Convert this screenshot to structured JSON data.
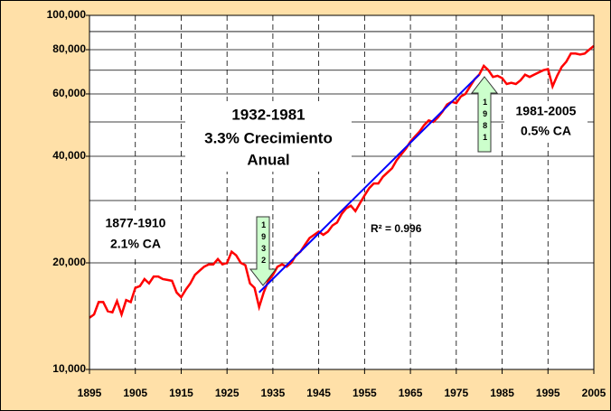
{
  "chart_data": {
    "type": "line",
    "log_y": true,
    "grid": true,
    "background": "#ffe0a8",
    "x": [
      1895,
      1896,
      1897,
      1898,
      1899,
      1900,
      1901,
      1902,
      1903,
      1904,
      1905,
      1906,
      1907,
      1908,
      1909,
      1910,
      1911,
      1912,
      1913,
      1914,
      1915,
      1916,
      1917,
      1918,
      1919,
      1920,
      1921,
      1922,
      1923,
      1924,
      1925,
      1926,
      1927,
      1928,
      1929,
      1930,
      1931,
      1932,
      1933,
      1934,
      1935,
      1936,
      1937,
      1938,
      1939,
      1940,
      1941,
      1942,
      1943,
      1944,
      1945,
      1946,
      1947,
      1948,
      1949,
      1950,
      1951,
      1952,
      1953,
      1954,
      1955,
      1956,
      1957,
      1958,
      1959,
      1960,
      1961,
      1962,
      1963,
      1964,
      1965,
      1966,
      1967,
      1968,
      1969,
      1970,
      1971,
      1972,
      1973,
      1974,
      1975,
      1976,
      1977,
      1978,
      1979,
      1980,
      1981,
      1982,
      1983,
      1984,
      1985,
      1986,
      1987,
      1988,
      1989,
      1990,
      1991,
      1992,
      1993,
      1994,
      1995,
      1996,
      1997,
      1998,
      1999,
      2000,
      2001,
      2002,
      2003,
      2004,
      2005
    ],
    "series": [
      {
        "color": "#ff0000",
        "values": [
          14000,
          14300,
          15500,
          15500,
          14600,
          14500,
          15600,
          14300,
          15700,
          15500,
          17000,
          17200,
          18000,
          17500,
          18300,
          18300,
          18000,
          17900,
          17800,
          16500,
          16000,
          16800,
          17500,
          18500,
          19000,
          19500,
          19800,
          19800,
          20500,
          19800,
          20000,
          21500,
          21000,
          20000,
          19700,
          17500,
          17000,
          15000,
          16500,
          17800,
          18500,
          19500,
          19800,
          19500,
          20000,
          21000,
          21500,
          22500,
          23500,
          24000,
          24500,
          24000,
          24500,
          25500,
          26000,
          27500,
          28500,
          29000,
          28000,
          29500,
          31000,
          32500,
          33500,
          33500,
          35000,
          36000,
          37000,
          39000,
          40500,
          42000,
          44000,
          45500,
          47000,
          49000,
          50500,
          50000,
          51500,
          53500,
          56000,
          57000,
          56500,
          59000,
          60000,
          63000,
          66000,
          68000,
          72000,
          70000,
          67000,
          67500,
          66500,
          64000,
          64500,
          64000,
          65500,
          68000,
          67000,
          68000,
          69000,
          70000,
          70500,
          63000,
          67500,
          71500,
          74000,
          78000,
          78000,
          77500,
          78000,
          80000,
          82000
        ]
      },
      {
        "color": "#0000ff",
        "x": [
          1932,
          1980
        ],
        "values": [
          16500,
          68000
        ]
      }
    ],
    "xlim": [
      1895,
      2005
    ],
    "xticks": [
      1895,
      1905,
      1915,
      1925,
      1935,
      1945,
      1955,
      1965,
      1975,
      1985,
      1995,
      2005
    ],
    "ylim": [
      10000,
      100000
    ],
    "yticks": [
      {
        "value": 10000,
        "label": "10,000"
      },
      {
        "value": 20000,
        "label": "20,000"
      },
      {
        "value": 40000,
        "label": "40,000"
      },
      {
        "value": 60000,
        "label": "60,000"
      },
      {
        "value": 80000,
        "label": "80,000"
      },
      {
        "value": 100000,
        "label": "100,000"
      }
    ],
    "yminorticks": [
      30000,
      50000,
      70000,
      90000
    ],
    "annotations": {
      "main": [
        "1932-1981",
        "3.3% Crecimiento",
        "Anual"
      ],
      "early": [
        "1877-1910",
        "2.1% CA"
      ],
      "late": [
        "1981-2005",
        "0.5% CA"
      ],
      "r2": "R² = 0.996",
      "arrow_down": "1932",
      "arrow_up": "1981"
    }
  }
}
